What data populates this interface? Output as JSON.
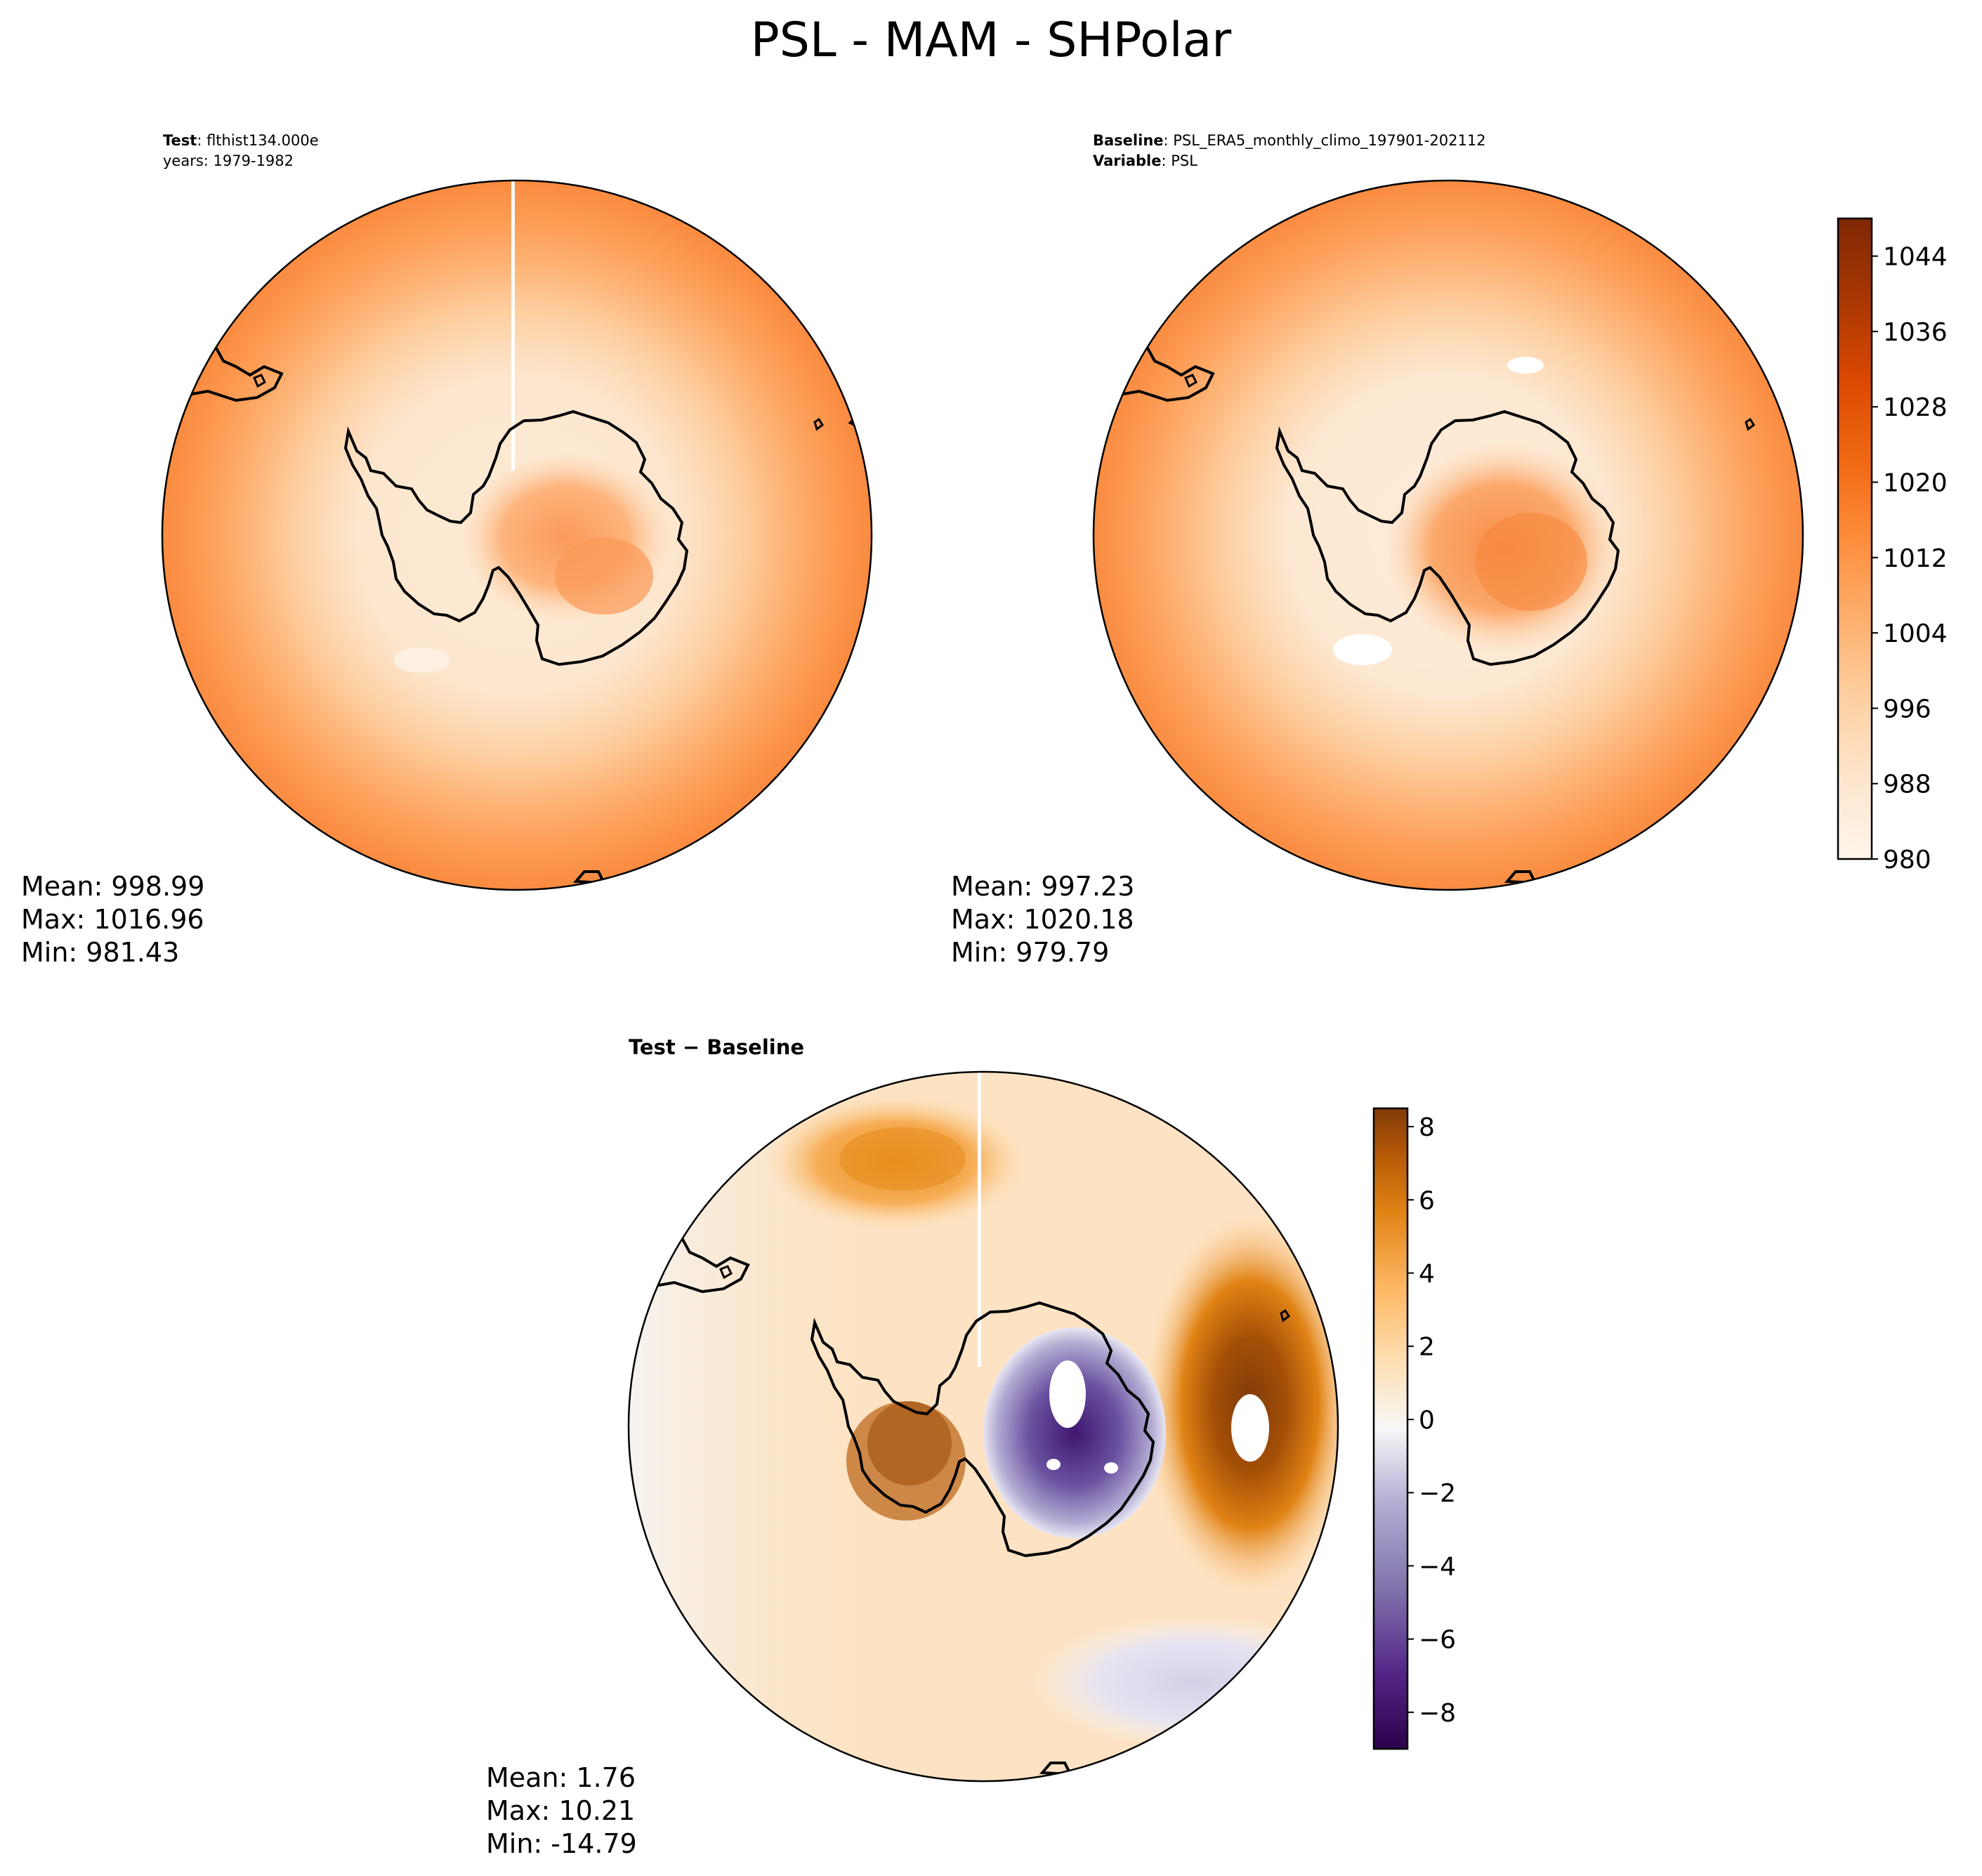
{
  "figure": {
    "title": "PSL - MAM - SHPolar"
  },
  "colors": {
    "coastline": "#000000",
    "frame": "#000000",
    "background": "#ffffff"
  },
  "chart_data": [
    {
      "type": "heatmap",
      "id": "test",
      "projection": "south-polar-stereographic",
      "label_bold_1": "Test",
      "label_rest_1": ": flthist134.000e",
      "label_line_2": "years: 1979-1982",
      "stats": {
        "mean": "Mean: 998.99",
        "max": "Max: 1016.96",
        "min": "Min: 981.43"
      },
      "colormap": "Oranges",
      "range": [
        980,
        1048
      ],
      "colorbar_ticks": [
        "980",
        "988",
        "996",
        "1004",
        "1012",
        "1020",
        "1028",
        "1036",
        "1044"
      ]
    },
    {
      "type": "heatmap",
      "id": "baseline",
      "projection": "south-polar-stereographic",
      "label_bold_1": "Baseline",
      "label_rest_1": ": PSL_ERA5_monthly_climo_197901-202112",
      "label_bold_2": "Variable",
      "label_rest_2": ": PSL",
      "stats": {
        "mean": "Mean: 997.23",
        "max": "Max: 1020.18",
        "min": "Min: 979.79"
      },
      "colormap": "Oranges",
      "range": [
        980,
        1048
      ],
      "colorbar_ticks": [
        "980",
        "988",
        "996",
        "1004",
        "1012",
        "1020",
        "1028",
        "1036",
        "1044"
      ]
    },
    {
      "type": "heatmap",
      "id": "difference",
      "projection": "south-polar-stereographic",
      "label": "Test − Baseline",
      "stats": {
        "mean": "Mean:  1.76",
        "max": "Max: 10.21",
        "min": "Min: -14.79"
      },
      "colormap": "PuOr_r",
      "range": [
        -9,
        8.5
      ],
      "colorbar_ticks": [
        "−8",
        "−6",
        "−4",
        "−2",
        "0",
        "2",
        "4",
        "6",
        "8"
      ]
    }
  ]
}
